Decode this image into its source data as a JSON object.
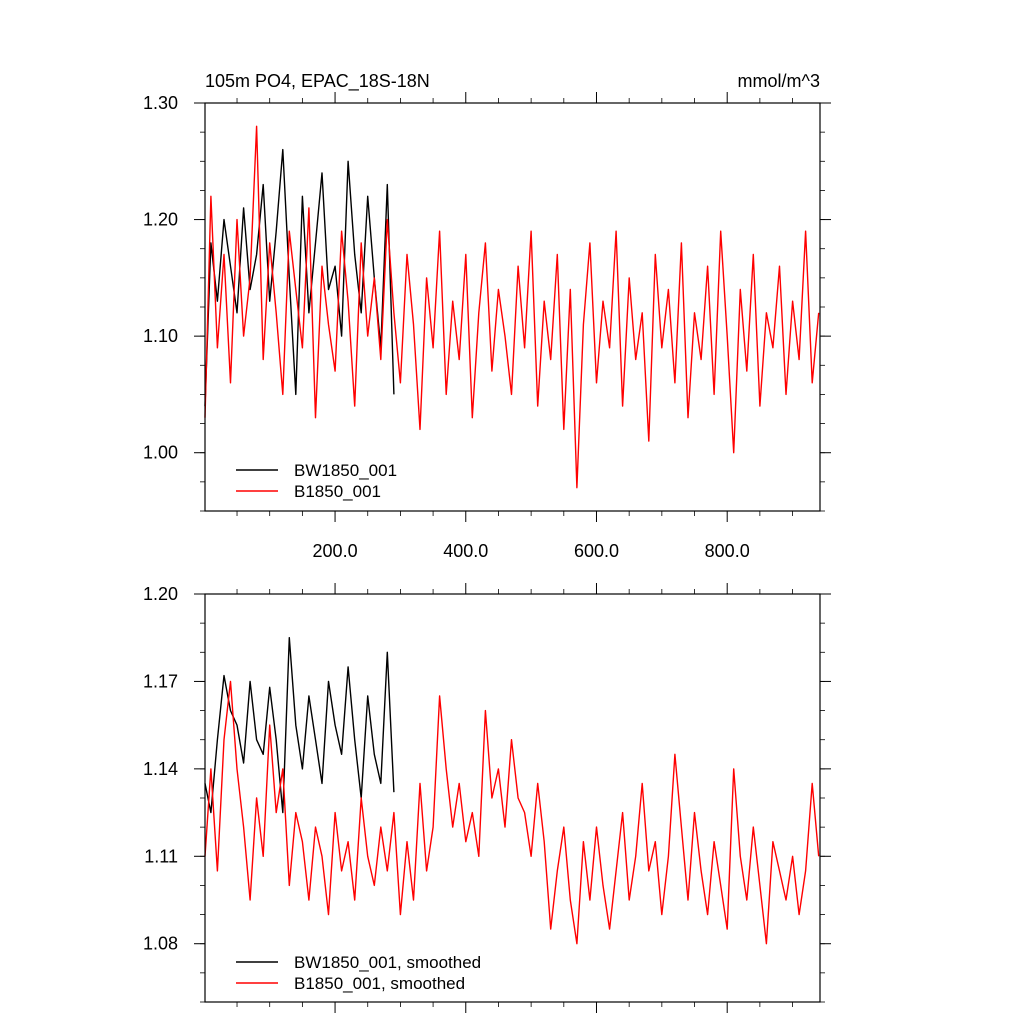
{
  "colors": {
    "BW1850_001": "#000000",
    "B1850_001": "#ff0000"
  },
  "chart_data": [
    {
      "type": "line",
      "title": "105m PO4, EPAC_18S-18N",
      "units": "mmol/m^3",
      "xlim": [
        1,
        942
      ],
      "ylim": [
        0.95,
        1.3
      ],
      "x_ticks": [
        200,
        400,
        600,
        800
      ],
      "x_tick_labels": [
        "200.0",
        "400.0",
        "600.0",
        "800.0"
      ],
      "y_ticks": [
        1.0,
        1.1,
        1.2,
        1.3
      ],
      "y_tick_labels": [
        "1.00",
        "1.10",
        "1.20",
        "1.30"
      ],
      "legend_position": "bottom-left",
      "series": [
        {
          "name": "BW1850_001",
          "color": "#000000",
          "x": [
            1,
            10,
            20,
            30,
            40,
            50,
            60,
            70,
            80,
            90,
            100,
            110,
            120,
            130,
            140,
            150,
            160,
            170,
            180,
            190,
            200,
            210,
            220,
            230,
            240,
            250,
            260,
            270,
            280,
            290
          ],
          "y": [
            1.04,
            1.18,
            1.13,
            1.2,
            1.16,
            1.12,
            1.21,
            1.14,
            1.17,
            1.23,
            1.13,
            1.19,
            1.26,
            1.15,
            1.05,
            1.22,
            1.12,
            1.18,
            1.24,
            1.14,
            1.16,
            1.1,
            1.25,
            1.17,
            1.12,
            1.22,
            1.15,
            1.09,
            1.23,
            1.05
          ]
        },
        {
          "name": "B1850_001",
          "color": "#ff0000",
          "x": [
            1,
            10,
            20,
            30,
            40,
            50,
            60,
            70,
            80,
            90,
            100,
            110,
            120,
            130,
            140,
            150,
            160,
            170,
            180,
            190,
            200,
            210,
            220,
            230,
            240,
            250,
            260,
            270,
            280,
            290,
            300,
            310,
            320,
            330,
            340,
            350,
            360,
            370,
            380,
            390,
            400,
            410,
            420,
            430,
            440,
            450,
            460,
            470,
            480,
            490,
            500,
            510,
            520,
            530,
            540,
            550,
            560,
            570,
            580,
            590,
            600,
            610,
            620,
            630,
            640,
            650,
            660,
            670,
            680,
            690,
            700,
            710,
            720,
            730,
            740,
            750,
            760,
            770,
            780,
            790,
            800,
            810,
            820,
            830,
            840,
            850,
            860,
            870,
            880,
            890,
            900,
            910,
            920,
            930,
            940
          ],
          "y": [
            1.03,
            1.22,
            1.09,
            1.17,
            1.06,
            1.2,
            1.1,
            1.15,
            1.28,
            1.08,
            1.18,
            1.12,
            1.05,
            1.19,
            1.14,
            1.09,
            1.21,
            1.03,
            1.16,
            1.11,
            1.07,
            1.19,
            1.13,
            1.04,
            1.18,
            1.1,
            1.15,
            1.08,
            1.2,
            1.12,
            1.06,
            1.17,
            1.11,
            1.02,
            1.15,
            1.09,
            1.19,
            1.05,
            1.13,
            1.08,
            1.17,
            1.03,
            1.12,
            1.18,
            1.07,
            1.14,
            1.1,
            1.05,
            1.16,
            1.09,
            1.19,
            1.04,
            1.13,
            1.08,
            1.17,
            1.02,
            1.14,
            0.97,
            1.11,
            1.18,
            1.06,
            1.13,
            1.09,
            1.19,
            1.04,
            1.15,
            1.08,
            1.12,
            1.01,
            1.17,
            1.09,
            1.14,
            1.06,
            1.18,
            1.03,
            1.12,
            1.08,
            1.16,
            1.05,
            1.19,
            1.1,
            1.0,
            1.14,
            1.07,
            1.17,
            1.04,
            1.12,
            1.09,
            1.16,
            1.05,
            1.13,
            1.08,
            1.19,
            1.06,
            1.12
          ]
        }
      ]
    },
    {
      "type": "line",
      "xlim": [
        1,
        942
      ],
      "ylim": [
        1.06,
        1.2
      ],
      "y_ticks": [
        1.08,
        1.11,
        1.14,
        1.17,
        1.2
      ],
      "y_tick_labels": [
        "1.08",
        "1.11",
        "1.14",
        "1.17",
        "1.20"
      ],
      "legend_position": "bottom-left",
      "series": [
        {
          "name": "BW1850_001, smoothed",
          "color": "#000000",
          "x": [
            1,
            10,
            20,
            30,
            40,
            50,
            60,
            70,
            80,
            90,
            100,
            110,
            120,
            130,
            140,
            150,
            160,
            170,
            180,
            190,
            200,
            210,
            220,
            230,
            240,
            250,
            260,
            270,
            280,
            290
          ],
          "y": [
            1.135,
            1.125,
            1.15,
            1.172,
            1.16,
            1.155,
            1.142,
            1.17,
            1.15,
            1.145,
            1.168,
            1.15,
            1.125,
            1.185,
            1.155,
            1.14,
            1.165,
            1.15,
            1.135,
            1.17,
            1.155,
            1.145,
            1.175,
            1.15,
            1.13,
            1.165,
            1.145,
            1.135,
            1.18,
            1.132
          ]
        },
        {
          "name": "B1850_001, smoothed",
          "color": "#ff0000",
          "x": [
            1,
            10,
            20,
            30,
            40,
            50,
            60,
            70,
            80,
            90,
            100,
            110,
            120,
            130,
            140,
            150,
            160,
            170,
            180,
            190,
            200,
            210,
            220,
            230,
            240,
            250,
            260,
            270,
            280,
            290,
            300,
            310,
            320,
            330,
            340,
            350,
            360,
            370,
            380,
            390,
            400,
            410,
            420,
            430,
            440,
            450,
            460,
            470,
            480,
            490,
            500,
            510,
            520,
            530,
            540,
            550,
            560,
            570,
            580,
            590,
            600,
            610,
            620,
            630,
            640,
            650,
            660,
            670,
            680,
            690,
            700,
            710,
            720,
            730,
            740,
            750,
            760,
            770,
            780,
            790,
            800,
            810,
            820,
            830,
            840,
            850,
            860,
            870,
            880,
            890,
            900,
            910,
            920,
            930,
            940
          ],
          "y": [
            1.11,
            1.14,
            1.105,
            1.15,
            1.17,
            1.14,
            1.12,
            1.095,
            1.13,
            1.11,
            1.155,
            1.125,
            1.14,
            1.1,
            1.125,
            1.115,
            1.095,
            1.12,
            1.11,
            1.09,
            1.125,
            1.105,
            1.115,
            1.095,
            1.13,
            1.11,
            1.1,
            1.12,
            1.105,
            1.125,
            1.09,
            1.115,
            1.095,
            1.135,
            1.105,
            1.12,
            1.165,
            1.14,
            1.12,
            1.135,
            1.115,
            1.125,
            1.11,
            1.16,
            1.13,
            1.14,
            1.12,
            1.15,
            1.13,
            1.125,
            1.11,
            1.135,
            1.115,
            1.085,
            1.105,
            1.12,
            1.095,
            1.08,
            1.115,
            1.095,
            1.12,
            1.1,
            1.085,
            1.105,
            1.125,
            1.095,
            1.11,
            1.135,
            1.105,
            1.115,
            1.09,
            1.11,
            1.145,
            1.12,
            1.095,
            1.125,
            1.105,
            1.09,
            1.115,
            1.1,
            1.085,
            1.14,
            1.11,
            1.095,
            1.12,
            1.1,
            1.08,
            1.115,
            1.105,
            1.095,
            1.11,
            1.09,
            1.105,
            1.135,
            1.11
          ]
        }
      ]
    }
  ]
}
